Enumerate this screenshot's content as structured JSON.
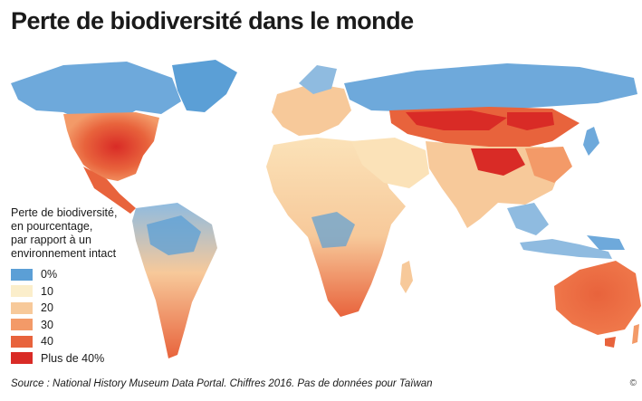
{
  "title": "Perte de biodiversité dans le monde",
  "legend": {
    "title_lines": [
      "Perte de biodiversité,",
      "en pourcentage,",
      "par rapport à un",
      "environnement intact"
    ],
    "items": [
      {
        "label": "0%",
        "color": "#5b9fd6"
      },
      {
        "label": "10",
        "color": "#fbeecb"
      },
      {
        "label": "20",
        "color": "#f7c99a"
      },
      {
        "label": "30",
        "color": "#f39a68"
      },
      {
        "label": "40",
        "color": "#e8633c"
      },
      {
        "label": "Plus de 40%",
        "color": "#d92b26"
      }
    ]
  },
  "source": "Source : National History Museum Data Portal. Chiffres 2016. Pas de données pour Taïwan",
  "credit": "©"
}
